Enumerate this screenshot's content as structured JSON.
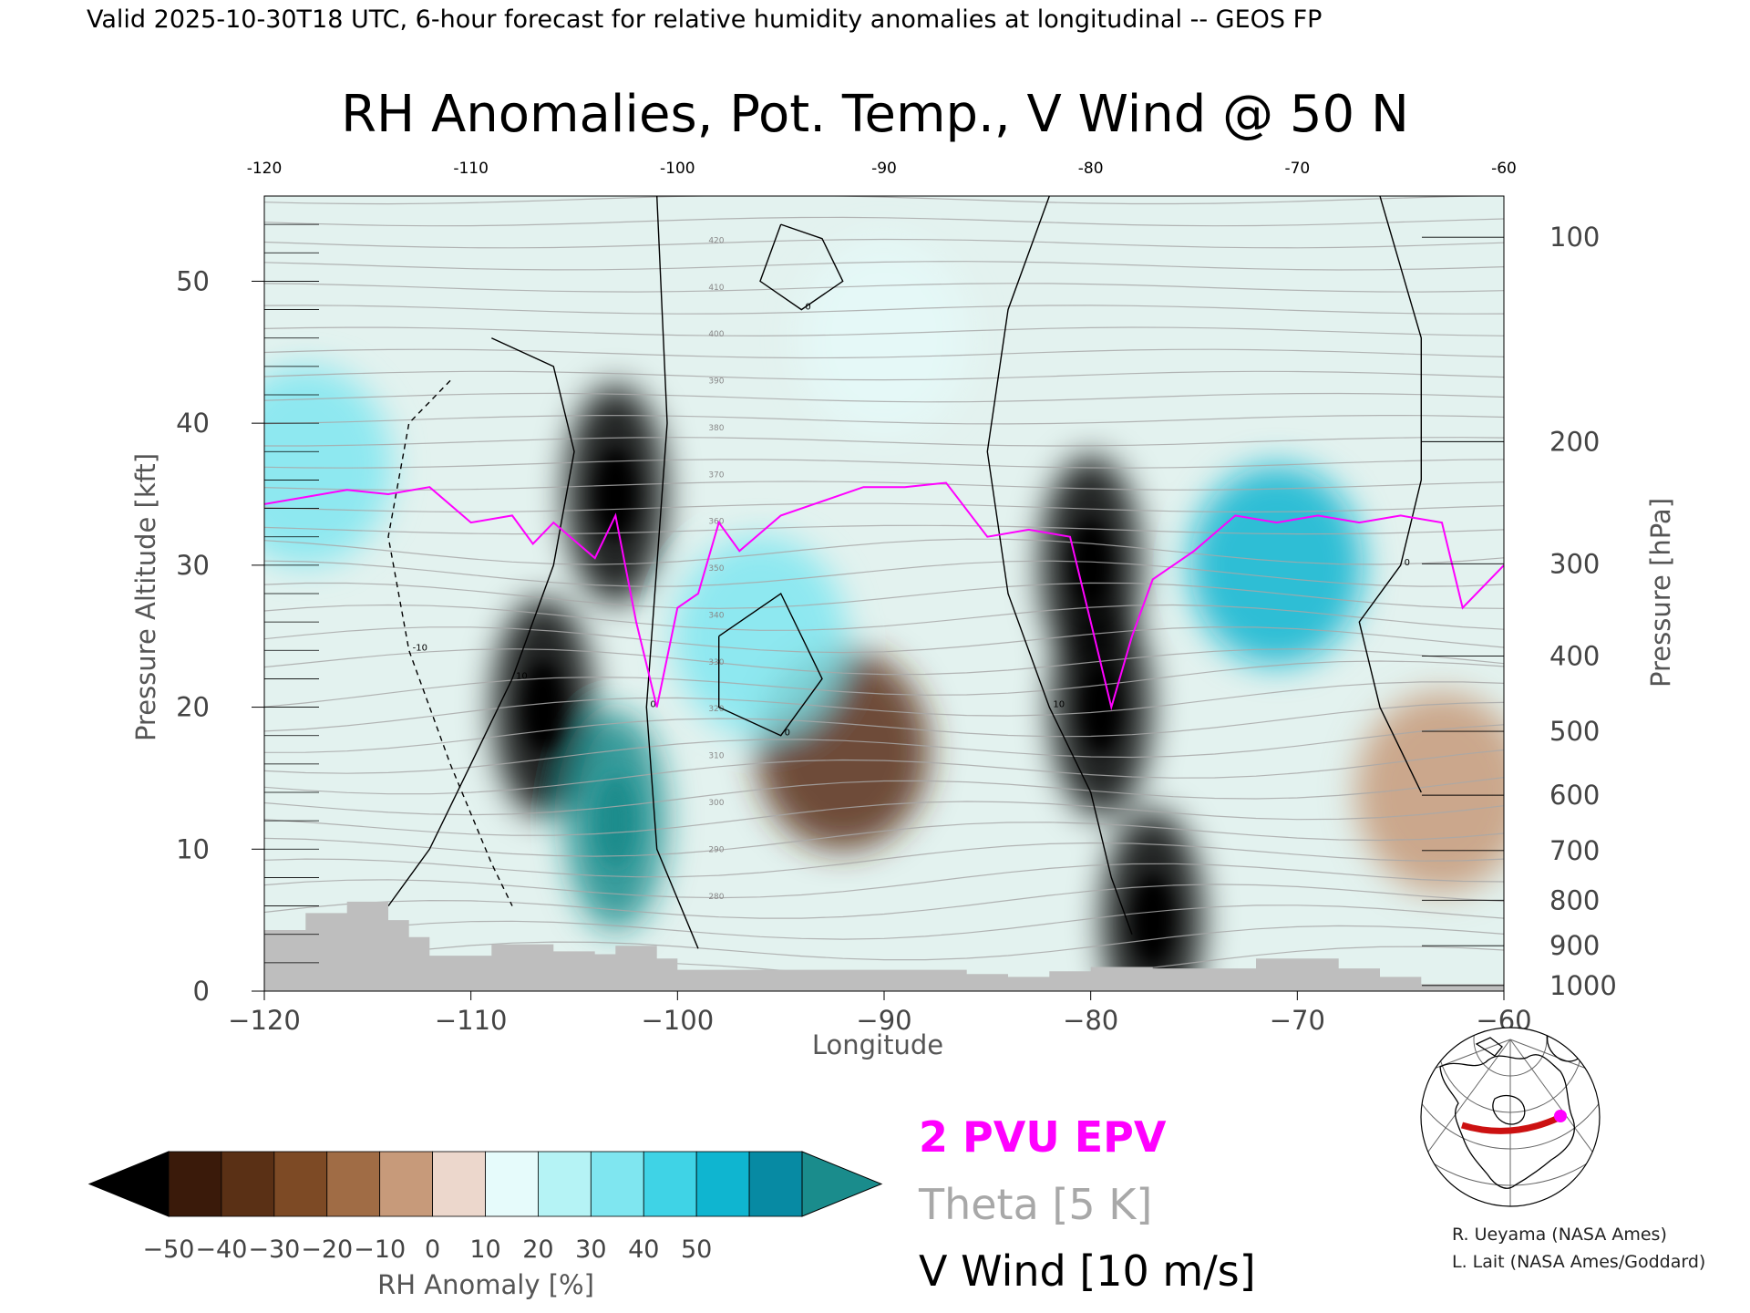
{
  "header": {
    "valid_line": "Valid 2025-10-30T18 UTC, 6-hour forecast for relative humidity anomalies at longitudinal -- GEOS FP"
  },
  "chart_data": {
    "type": "heatmap",
    "title": "RH Anomalies, Pot. Temp., V Wind @ 50 N",
    "xlabel": "Longitude",
    "ylabel": "Pressure Altitude [kft]",
    "y2label": "Pressure [hPa]",
    "xlim": [
      -120,
      -60
    ],
    "ylim": [
      0,
      56
    ],
    "x_ticks": [
      -120,
      -110,
      -100,
      -90,
      -80,
      -70,
      -60
    ],
    "x_tick_labels": [
      "−120",
      "−110",
      "−100",
      "−90",
      "−80",
      "−70",
      "−60"
    ],
    "top_tick_labels": [
      "-120",
      "-110",
      "-100",
      "-90",
      "-80",
      "-70",
      "-60"
    ],
    "y_ticks": [
      0,
      10,
      20,
      30,
      40,
      50
    ],
    "y_tick_labels": [
      "0",
      "10",
      "20",
      "30",
      "40",
      "50"
    ],
    "pressure_ticks": [
      {
        "label": "100",
        "kft": 53.1
      },
      {
        "label": "200",
        "kft": 38.7
      },
      {
        "label": "300",
        "kft": 30.1
      },
      {
        "label": "400",
        "kft": 23.6
      },
      {
        "label": "500",
        "kft": 18.3
      },
      {
        "label": "600",
        "kft": 13.8
      },
      {
        "label": "700",
        "kft": 9.9
      },
      {
        "label": "800",
        "kft": 6.4
      },
      {
        "label": "900",
        "kft": 3.2
      },
      {
        "label": "1000",
        "kft": 0.4
      }
    ],
    "colorbar": {
      "label": "RH Anomaly [%]",
      "tick_labels": [
        "−50",
        "−40",
        "−30",
        "−20",
        "−10",
        "0",
        "10",
        "20",
        "30",
        "40",
        "50"
      ],
      "colors": [
        "#3a1a0a",
        "#5a3015",
        "#7d4a25",
        "#a06c45",
        "#c79a7a",
        "#ecd7cc",
        "#e6fbfb",
        "#b5f3f5",
        "#7fe6f0",
        "#3fd3e6",
        "#0fb5d0",
        "#078aa3"
      ],
      "under_color": "#000000",
      "over_color": "#1a8c8c"
    },
    "rh_anomaly_regions": [
      {
        "lon": -103,
        "kft": 35,
        "value": -55
      },
      {
        "lon": -106.5,
        "kft": 20,
        "value": -50
      },
      {
        "lon": -92,
        "kft": 17,
        "value": -45
      },
      {
        "lon": -80,
        "kft": 30,
        "value": -55
      },
      {
        "lon": -79.5,
        "kft": 20,
        "value": -55
      },
      {
        "lon": -77,
        "kft": 5,
        "value": -50
      },
      {
        "lon": -103,
        "kft": 12,
        "value": 55
      },
      {
        "lon": -71,
        "kft": 30,
        "value": 40
      },
      {
        "lon": -96,
        "kft": 25,
        "value": 25
      },
      {
        "lon": -118,
        "kft": 37,
        "value": 25
      },
      {
        "lon": -90,
        "kft": 46,
        "value": 0
      },
      {
        "lon": -63,
        "kft": 14,
        "value": -20
      }
    ],
    "theta_levels": [
      "280",
      "290",
      "300",
      "310",
      "320",
      "330",
      "340",
      "350",
      "360",
      "370",
      "380",
      "390",
      "400",
      "410",
      "420"
    ],
    "epv_2pvu_line": [
      [
        -120,
        34.3
      ],
      [
        -118,
        34.8
      ],
      [
        -116,
        35.3
      ],
      [
        -114,
        35.0
      ],
      [
        -112,
        35.5
      ],
      [
        -110,
        33.0
      ],
      [
        -108,
        33.5
      ],
      [
        -107,
        31.5
      ],
      [
        -106,
        33.0
      ],
      [
        -104,
        30.5
      ],
      [
        -103,
        33.5
      ],
      [
        -102,
        26.0
      ],
      [
        -101,
        20.0
      ],
      [
        -100,
        27.0
      ],
      [
        -99,
        28.0
      ],
      [
        -98,
        33.0
      ],
      [
        -97,
        31.0
      ],
      [
        -95,
        33.5
      ],
      [
        -93,
        34.5
      ],
      [
        -91,
        35.5
      ],
      [
        -89,
        35.5
      ],
      [
        -87,
        35.8
      ],
      [
        -85,
        32.0
      ],
      [
        -83,
        32.5
      ],
      [
        -81,
        32.0
      ],
      [
        -80,
        26.0
      ],
      [
        -79,
        20.0
      ],
      [
        -78,
        25.0
      ],
      [
        -77,
        29.0
      ],
      [
        -75,
        31.0
      ],
      [
        -73,
        33.5
      ],
      [
        -71,
        33.0
      ],
      [
        -69,
        33.5
      ],
      [
        -67,
        33.0
      ],
      [
        -65,
        33.5
      ],
      [
        -63,
        33.0
      ],
      [
        -62,
        27.0
      ],
      [
        -60,
        30.0
      ]
    ],
    "v_wind_contours": [
      {
        "label": "10",
        "points": [
          [
            -109,
            46
          ],
          [
            -106,
            44
          ],
          [
            -105,
            38
          ],
          [
            -106,
            30
          ],
          [
            -108,
            22
          ],
          [
            -110,
            16
          ],
          [
            -112,
            10
          ],
          [
            -114,
            6
          ]
        ]
      },
      {
        "label": "-10",
        "points": [
          [
            -111,
            43
          ],
          [
            -113,
            40
          ],
          [
            -114,
            32
          ],
          [
            -113,
            24
          ],
          [
            -111,
            16
          ],
          [
            -109,
            9
          ],
          [
            -108,
            6
          ]
        ]
      },
      {
        "label": "0",
        "points": [
          [
            -101,
            56
          ],
          [
            -100.5,
            40
          ],
          [
            -101,
            30
          ],
          [
            -101.5,
            20
          ],
          [
            -101,
            10
          ],
          [
            -99,
            3
          ]
        ]
      },
      {
        "label": "10",
        "points": [
          [
            -82,
            56
          ],
          [
            -84,
            48
          ],
          [
            -85,
            38
          ],
          [
            -84,
            28
          ],
          [
            -82,
            20
          ],
          [
            -80,
            14
          ],
          [
            -79,
            8
          ],
          [
            -78,
            4
          ]
        ]
      },
      {
        "label": "0",
        "points": [
          [
            -66,
            56
          ],
          [
            -64,
            46
          ],
          [
            -64,
            36
          ],
          [
            -65,
            30
          ],
          [
            -67,
            26
          ],
          [
            -66,
            20
          ],
          [
            -64,
            14
          ]
        ]
      },
      {
        "label": "0",
        "points": [
          [
            -95,
            54
          ],
          [
            -93,
            53
          ],
          [
            -92,
            50
          ],
          [
            -94,
            48
          ],
          [
            -96,
            50
          ],
          [
            -95,
            54
          ]
        ]
      },
      {
        "label": "0",
        "points": [
          [
            -98,
            25
          ],
          [
            -95,
            28
          ],
          [
            -93,
            22
          ],
          [
            -95,
            18
          ],
          [
            -98,
            20
          ],
          [
            -98,
            25
          ]
        ]
      }
    ],
    "terrain": [
      [
        -120,
        4.3
      ],
      [
        -119,
        4.3
      ],
      [
        -118,
        5.5
      ],
      [
        -116,
        6.3
      ],
      [
        -114,
        5.0
      ],
      [
        -113,
        3.8
      ],
      [
        -112,
        2.5
      ],
      [
        -110,
        2.5
      ],
      [
        -109,
        3.3
      ],
      [
        -106,
        2.8
      ],
      [
        -104,
        2.6
      ],
      [
        -103,
        3.2
      ],
      [
        -101,
        2.3
      ],
      [
        -100,
        1.5
      ],
      [
        -96,
        1.5
      ],
      [
        -93,
        1.5
      ],
      [
        -86,
        1.2
      ],
      [
        -84,
        1.0
      ],
      [
        -82,
        1.4
      ],
      [
        -80,
        1.7
      ],
      [
        -77,
        1.6
      ],
      [
        -74,
        1.6
      ],
      [
        -72,
        2.3
      ],
      [
        -70,
        2.3
      ],
      [
        -68,
        1.6
      ],
      [
        -66,
        1.0
      ],
      [
        -64,
        0.5
      ],
      [
        -60,
        0.5
      ]
    ],
    "legend": {
      "epv": "2 PVU EPV",
      "theta": "Theta [5 K]",
      "vwind": "V Wind [10 m/s]"
    },
    "colors": {
      "epv": "#ff00ff",
      "theta": "#a8a8a8",
      "vwind": "#000000",
      "terrain": "#bebebe",
      "locator_track": "#cc1111"
    }
  },
  "inset_map": {
    "name": "locator-map",
    "track_lat": 50,
    "track_lon_range": [
      -120,
      -60
    ],
    "marker_lon": -60
  },
  "credits": [
    "R. Ueyama (NASA Ames)",
    "L. Lait (NASA Ames/Goddard)"
  ]
}
